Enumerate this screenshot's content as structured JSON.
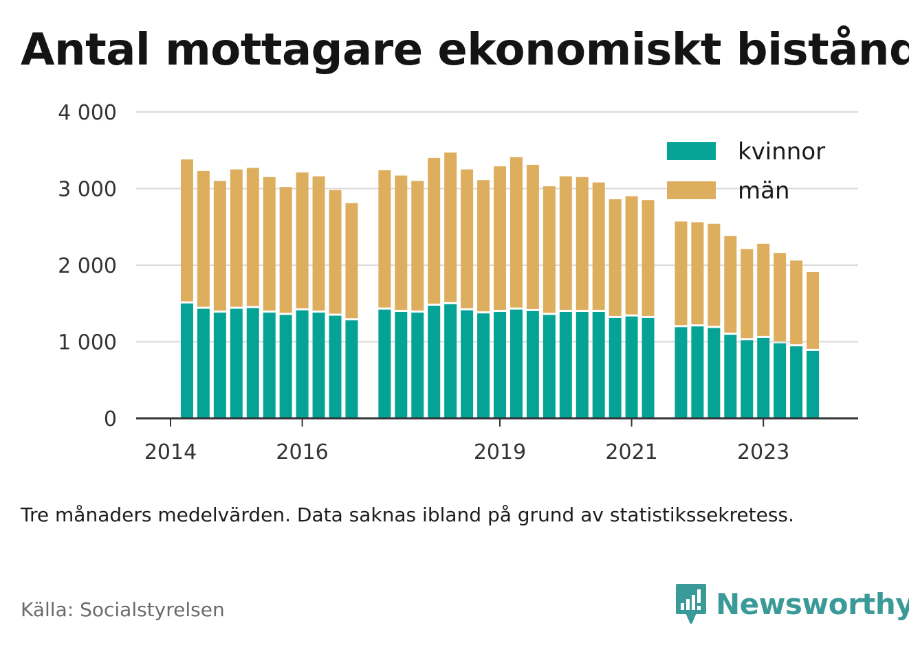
{
  "title": "Antal mottagare ekonomiskt bistånd",
  "note": "Tre månaders medelvärden. Data saknas ibland på grund av statistikssekretess.",
  "source": "Källa: Socialstyrelsen",
  "brand": {
    "name": "Newsworthy",
    "icon": "newsworthy-logo-icon",
    "color": "#3a9a98"
  },
  "chart_data": {
    "type": "bar",
    "stacked": true,
    "ylim": [
      0,
      4000
    ],
    "yticks": [
      0,
      1000,
      2000,
      3000,
      4000
    ],
    "ytick_labels": [
      "0",
      "1 000",
      "2 000",
      "3 000",
      "4 000"
    ],
    "xtick_labels": [
      {
        "label": "2014",
        "year": 2014.0
      },
      {
        "label": "2016",
        "year": 2016.0
      },
      {
        "label": "2019",
        "year": 2019.0
      },
      {
        "label": "2021",
        "year": 2021.0
      },
      {
        "label": "2023",
        "year": 2023.0
      }
    ],
    "grid": true,
    "legend_position": "top-right",
    "x": [
      2014.25,
      2014.5,
      2014.75,
      2015.0,
      2015.25,
      2015.5,
      2015.75,
      2016.0,
      2016.25,
      2016.5,
      2016.75,
      2017.25,
      2017.5,
      2017.75,
      2018.0,
      2018.25,
      2018.5,
      2018.75,
      2019.0,
      2019.25,
      2019.5,
      2019.75,
      2020.0,
      2020.25,
      2020.5,
      2020.75,
      2021.0,
      2021.25,
      2021.75,
      2022.0,
      2022.25,
      2022.5,
      2022.75,
      2023.0,
      2023.25,
      2023.5,
      2023.75
    ],
    "series": [
      {
        "name": "kvinnor",
        "color": "#05a396",
        "values": [
          1500,
          1430,
          1380,
          1430,
          1440,
          1380,
          1350,
          1410,
          1380,
          1340,
          1280,
          1420,
          1390,
          1380,
          1470,
          1490,
          1410,
          1370,
          1390,
          1420,
          1400,
          1350,
          1390,
          1390,
          1390,
          1310,
          1330,
          1310,
          1190,
          1200,
          1180,
          1090,
          1020,
          1050,
          980,
          940,
          880
        ]
      },
      {
        "name": "män",
        "color": "#dcae5e",
        "values": [
          1880,
          1800,
          1720,
          1820,
          1830,
          1770,
          1670,
          1800,
          1780,
          1640,
          1530,
          1820,
          1780,
          1720,
          1930,
          1980,
          1840,
          1740,
          1900,
          1990,
          1910,
          1680,
          1770,
          1760,
          1690,
          1550,
          1570,
          1540,
          1380,
          1360,
          1360,
          1290,
          1190,
          1230,
          1180,
          1120,
          1030
        ]
      }
    ]
  }
}
